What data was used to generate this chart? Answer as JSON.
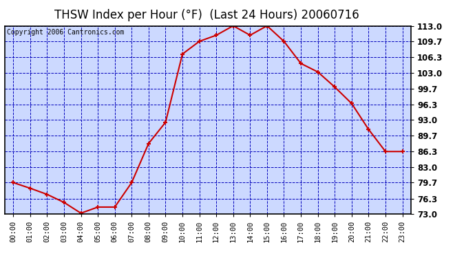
{
  "title": "THSW Index per Hour (°F)  (Last 24 Hours) 20060716",
  "copyright": "Copyright 2006 Cantronics.com",
  "hours": [
    "00:00",
    "01:00",
    "02:00",
    "03:00",
    "04:00",
    "05:00",
    "06:00",
    "07:00",
    "08:00",
    "09:00",
    "10:00",
    "11:00",
    "12:00",
    "13:00",
    "14:00",
    "15:00",
    "16:00",
    "17:00",
    "18:00",
    "19:00",
    "20:00",
    "21:00",
    "22:00",
    "23:00"
  ],
  "values": [
    79.7,
    78.5,
    77.2,
    75.5,
    73.2,
    74.5,
    74.5,
    79.7,
    88.0,
    92.5,
    107.0,
    109.7,
    111.0,
    113.0,
    111.0,
    113.0,
    109.7,
    105.0,
    103.2,
    100.0,
    96.5,
    91.0,
    86.3,
    86.3
  ],
  "ylim": [
    73.0,
    113.0
  ],
  "yticks": [
    73.0,
    76.3,
    79.7,
    83.0,
    86.3,
    89.7,
    93.0,
    96.3,
    99.7,
    103.0,
    106.3,
    109.7,
    113.0
  ],
  "ytick_labels": [
    "73.0",
    "76.3",
    "79.7",
    "83.0",
    "86.3",
    "89.7",
    "93.0",
    "96.3",
    "99.7",
    "103.0",
    "106.3",
    "109.7",
    "113.0"
  ],
  "line_color": "#cc0000",
  "marker_color": "#cc0000",
  "plot_bg": "#ccd9ff",
  "fig_bg": "#ffffff",
  "border_color": "#000000",
  "grid_color": "#0000bb",
  "title_color": "#000000",
  "copyright_color": "#000000",
  "title_fontsize": 12,
  "copyright_fontsize": 7,
  "tick_label_fontsize": 8.5
}
